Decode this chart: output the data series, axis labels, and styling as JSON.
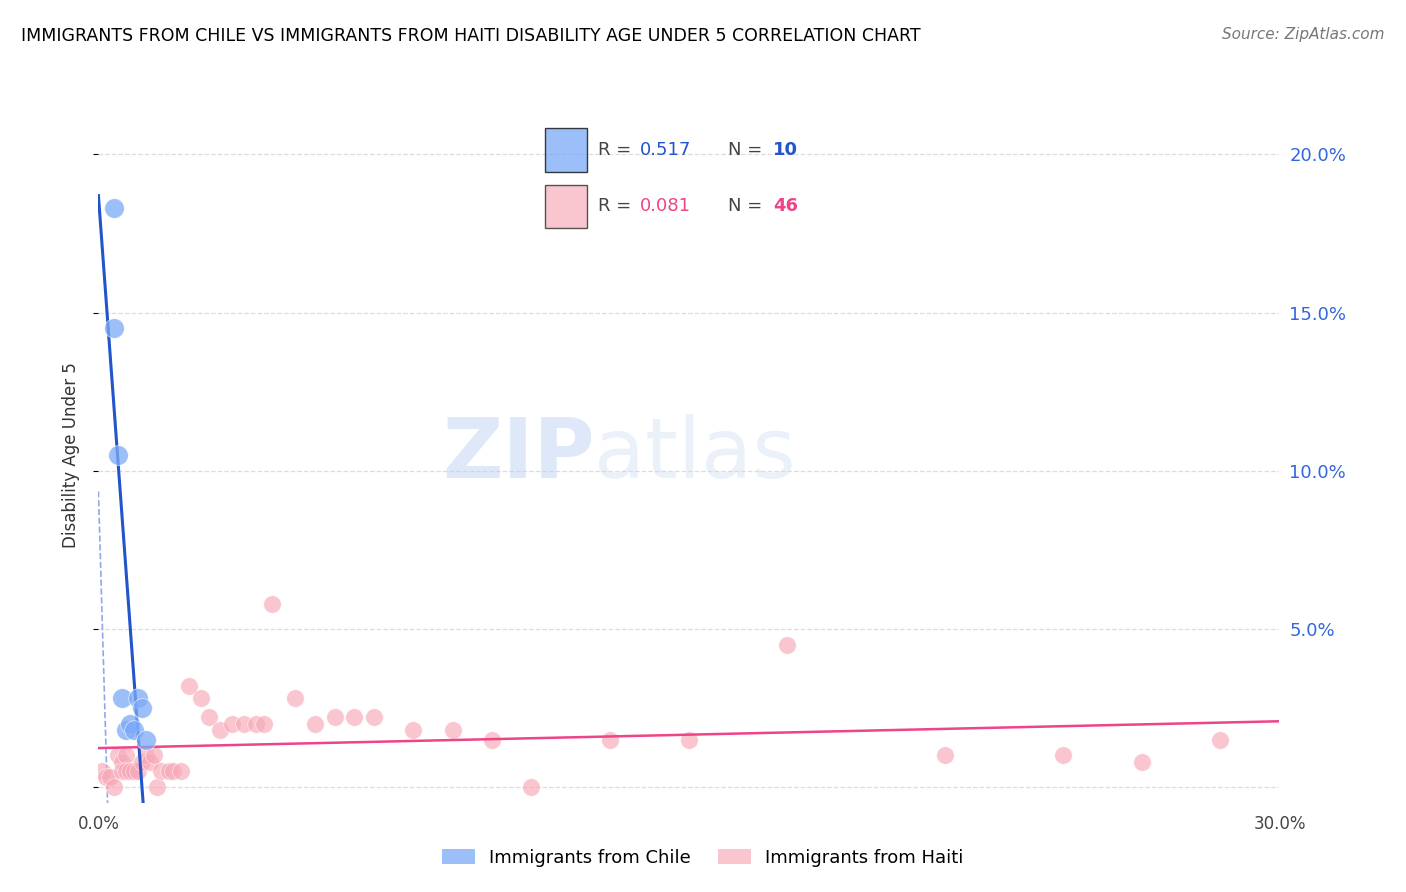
{
  "title": "IMMIGRANTS FROM CHILE VS IMMIGRANTS FROM HAITI DISABILITY AGE UNDER 5 CORRELATION CHART",
  "source": "Source: ZipAtlas.com",
  "ylabel": "Disability Age Under 5",
  "watermark_zip": "ZIP",
  "watermark_atlas": "atlas",
  "legend_chile": "Immigrants from Chile",
  "legend_haiti": "Immigrants from Haiti",
  "chile_R": "0.517",
  "chile_N": "10",
  "haiti_R": "0.081",
  "haiti_N": "46",
  "xlim": [
    0.0,
    0.3
  ],
  "ylim": [
    -0.005,
    0.215
  ],
  "plot_ylim": [
    0.0,
    0.21
  ],
  "yticks": [
    0.0,
    0.05,
    0.1,
    0.15,
    0.2
  ],
  "ytick_labels_right": [
    "",
    "5.0%",
    "10.0%",
    "15.0%",
    "20.0%"
  ],
  "xticks": [
    0.0,
    0.05,
    0.1,
    0.15,
    0.2,
    0.25,
    0.3
  ],
  "xtick_labels": [
    "0.0%",
    "",
    "",
    "",
    "",
    "",
    "30.0%"
  ],
  "chile_color": "#7baaf7",
  "haiti_color": "#f7a8b8",
  "chile_line_color": "#2255cc",
  "haiti_line_color": "#ee4488",
  "right_axis_color": "#3366dd",
  "grid_color": "#dddddd",
  "chile_x": [
    0.004,
    0.004,
    0.005,
    0.006,
    0.007,
    0.008,
    0.009,
    0.01,
    0.011,
    0.012
  ],
  "chile_y": [
    0.183,
    0.145,
    0.105,
    0.028,
    0.018,
    0.02,
    0.018,
    0.028,
    0.025,
    0.015
  ],
  "haiti_x": [
    0.001,
    0.002,
    0.003,
    0.004,
    0.005,
    0.006,
    0.006,
    0.007,
    0.007,
    0.008,
    0.009,
    0.01,
    0.011,
    0.012,
    0.013,
    0.014,
    0.015,
    0.016,
    0.018,
    0.019,
    0.021,
    0.023,
    0.026,
    0.028,
    0.031,
    0.034,
    0.037,
    0.04,
    0.042,
    0.044,
    0.05,
    0.055,
    0.06,
    0.065,
    0.07,
    0.08,
    0.09,
    0.1,
    0.11,
    0.13,
    0.15,
    0.175,
    0.215,
    0.245,
    0.265,
    0.285
  ],
  "haiti_y": [
    0.005,
    0.003,
    0.003,
    0.0,
    0.01,
    0.008,
    0.005,
    0.01,
    0.005,
    0.005,
    0.005,
    0.005,
    0.008,
    0.01,
    0.008,
    0.01,
    0.0,
    0.005,
    0.005,
    0.005,
    0.005,
    0.032,
    0.028,
    0.022,
    0.018,
    0.02,
    0.02,
    0.02,
    0.02,
    0.058,
    0.028,
    0.02,
    0.022,
    0.022,
    0.022,
    0.018,
    0.018,
    0.015,
    0.0,
    0.015,
    0.015,
    0.045,
    0.01,
    0.01,
    0.008,
    0.015
  ]
}
